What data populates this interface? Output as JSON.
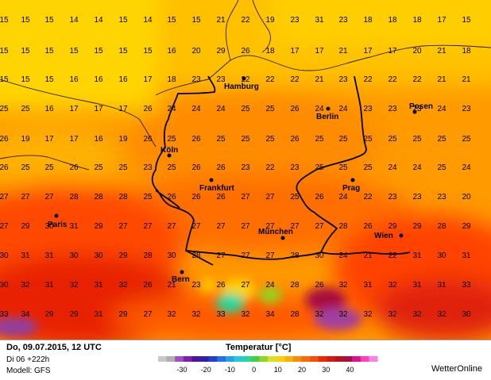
{
  "footer": {
    "date": "Do, 09.07.2015, 12 UTC",
    "run": "Di 06 +222h",
    "model": "Modell: GFS",
    "legend_title": "Temperatur [°C]",
    "brand": "WetterOnline"
  },
  "legend": {
    "ticks": [
      "-30",
      "-20",
      "-10",
      "0",
      "10",
      "20",
      "30",
      "40"
    ],
    "colors": [
      "#c8c8c8",
      "#b0b0b0",
      "#a050c0",
      "#8020b0",
      "#5010a0",
      "#3020b0",
      "#2040d0",
      "#2070e8",
      "#20a0f0",
      "#20c8e0",
      "#20d8a0",
      "#40d040",
      "#90d820",
      "#d8e020",
      "#ffd000",
      "#ffb000",
      "#ff8c00",
      "#ff6a00",
      "#ff4c00",
      "#f02800",
      "#d81810",
      "#c01020",
      "#a81040",
      "#e01090",
      "#ff40c0",
      "#ff80e0"
    ]
  },
  "cities": [
    {
      "name": "Hamburg",
      "lx": 282,
      "ly": 112,
      "dx": 307,
      "dy": 99
    },
    {
      "name": "Berlin",
      "lx": 398,
      "ly": 150,
      "dx": 413,
      "dy": 137
    },
    {
      "name": "Posen",
      "lx": 515,
      "ly": 137,
      "dx": 522,
      "dy": 141
    },
    {
      "name": "Köln",
      "lx": 202,
      "ly": 192,
      "dx": 213,
      "dy": 196
    },
    {
      "name": "Frankfurt",
      "lx": 251,
      "ly": 240,
      "dx": 266,
      "dy": 227
    },
    {
      "name": "Prag",
      "lx": 431,
      "ly": 240,
      "dx": 444,
      "dy": 227
    },
    {
      "name": "Paris",
      "lx": 60,
      "ly": 286,
      "dx": 71,
      "dy": 272
    },
    {
      "name": "München",
      "lx": 325,
      "ly": 295,
      "dx": 356,
      "dy": 300
    },
    {
      "name": "Wien",
      "lx": 471,
      "ly": 300,
      "dx": 505,
      "dy": 297
    },
    {
      "name": "Bern",
      "lx": 216,
      "ly": 355,
      "dx": 229,
      "dy": 343
    }
  ],
  "grid": {
    "x": [
      5,
      32,
      62,
      93,
      124,
      155,
      186,
      216,
      247,
      278,
      309,
      340,
      371,
      402,
      432,
      463,
      494,
      525,
      556,
      587
    ],
    "y": [
      28,
      67,
      103,
      140,
      178,
      214,
      251,
      288,
      325,
      362,
      399
    ],
    "values": [
      [
        "15",
        "15",
        "15",
        "14",
        "14",
        "15",
        "14",
        "15",
        "15",
        "21",
        "22",
        "19",
        "23",
        "31",
        "23",
        "18",
        "18",
        "18",
        "17",
        "15"
      ],
      [
        "15",
        "15",
        "15",
        "15",
        "15",
        "15",
        "15",
        "16",
        "20",
        "29",
        "26",
        "18",
        "17",
        "17",
        "21",
        "17",
        "17",
        "20",
        "21",
        "18"
      ],
      [
        "15",
        "15",
        "15",
        "16",
        "16",
        "16",
        "17",
        "18",
        "23",
        "23",
        "22",
        "22",
        "22",
        "21",
        "23",
        "22",
        "22",
        "22",
        "21",
        "21"
      ],
      [
        "25",
        "25",
        "16",
        "17",
        "17",
        "17",
        "26",
        "24",
        "24",
        "24",
        "25",
        "25",
        "26",
        "24",
        "24",
        "23",
        "23",
        "23",
        "24",
        "23"
      ],
      [
        "26",
        "19",
        "17",
        "17",
        "16",
        "19",
        "26",
        "25",
        "26",
        "25",
        "25",
        "25",
        "26",
        "25",
        "25",
        "25",
        "25",
        "25",
        "25",
        "25"
      ],
      [
        "26",
        "25",
        "25",
        "26",
        "25",
        "25",
        "23",
        "25",
        "26",
        "26",
        "23",
        "22",
        "23",
        "25",
        "25",
        "25",
        "24",
        "24",
        "25",
        "24"
      ],
      [
        "27",
        "27",
        "27",
        "28",
        "28",
        "28",
        "25",
        "26",
        "26",
        "26",
        "27",
        "27",
        "25",
        "26",
        "24",
        "22",
        "23",
        "23",
        "23",
        "20"
      ],
      [
        "27",
        "29",
        "30",
        "31",
        "29",
        "27",
        "27",
        "27",
        "27",
        "27",
        "27",
        "27",
        "27",
        "27",
        "28",
        "26",
        "29",
        "29",
        "28",
        "29"
      ],
      [
        "30",
        "31",
        "31",
        "30",
        "30",
        "29",
        "28",
        "30",
        "28",
        "27",
        "27",
        "27",
        "28",
        "30",
        "24",
        "21",
        "22",
        "31",
        "30",
        "31"
      ],
      [
        "30",
        "32",
        "31",
        "32",
        "31",
        "32",
        "26",
        "21",
        "23",
        "26",
        "27",
        "24",
        "28",
        "26",
        "32",
        "31",
        "32",
        "31",
        "31",
        "33"
      ],
      [
        "33",
        "34",
        "29",
        "29",
        "31",
        "29",
        "27",
        "32",
        "32",
        "33",
        "32",
        "34",
        "28",
        "32",
        "32",
        "32",
        "32",
        "32",
        "32",
        "30"
      ]
    ]
  }
}
